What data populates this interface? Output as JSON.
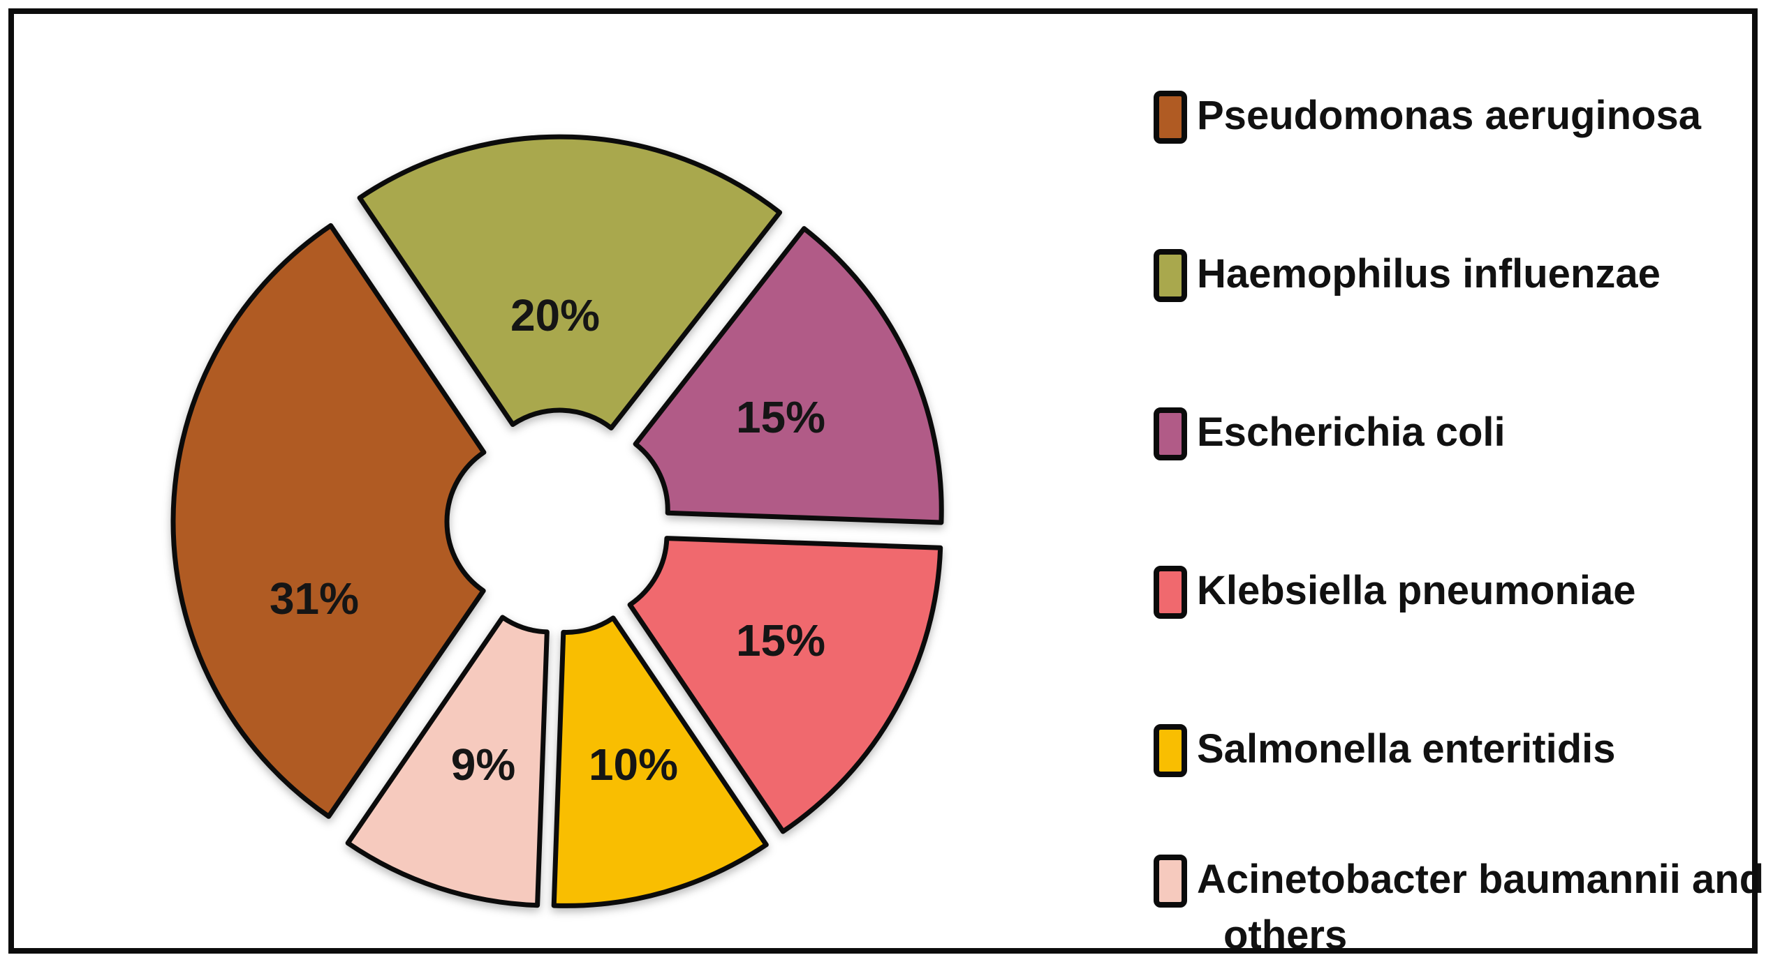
{
  "chart_data": {
    "type": "pie",
    "subtype": "exploded-donut",
    "title": "",
    "legend_position": "right",
    "value_label_format": "percent",
    "categories": [
      "Pseudomonas aeruginosa",
      "Haemophilus influenzae",
      "Escherichia coli",
      "Klebsiella pneumoniae",
      "Salmonella enteritidis",
      "Acinetobacter baumannii and others"
    ],
    "values": [
      31,
      20,
      15,
      15,
      10,
      9
    ],
    "slices": [
      {
        "label": "Pseudomonas aeruginosa",
        "value": 31,
        "display": "31%",
        "color": "#B05B23"
      },
      {
        "label": "Haemophilus influenzae",
        "value": 20,
        "display": "20%",
        "color": "#A9A84D"
      },
      {
        "label": "Escherichia coli",
        "value": 15,
        "display": "15%",
        "color": "#B15B87"
      },
      {
        "label": "Klebsiella pneumoniae",
        "value": 15,
        "display": "15%",
        "color": "#F0696E"
      },
      {
        "label": "Salmonella enteritidis",
        "value": 10,
        "display": "10%",
        "color": "#F9BE01"
      },
      {
        "label": "Acinetobacter baumannii and others",
        "value": 9,
        "display": "9%",
        "color": "#F6CABE"
      }
    ],
    "colors": {
      "outline": "#0b0b0b",
      "background": "#ffffff"
    }
  }
}
